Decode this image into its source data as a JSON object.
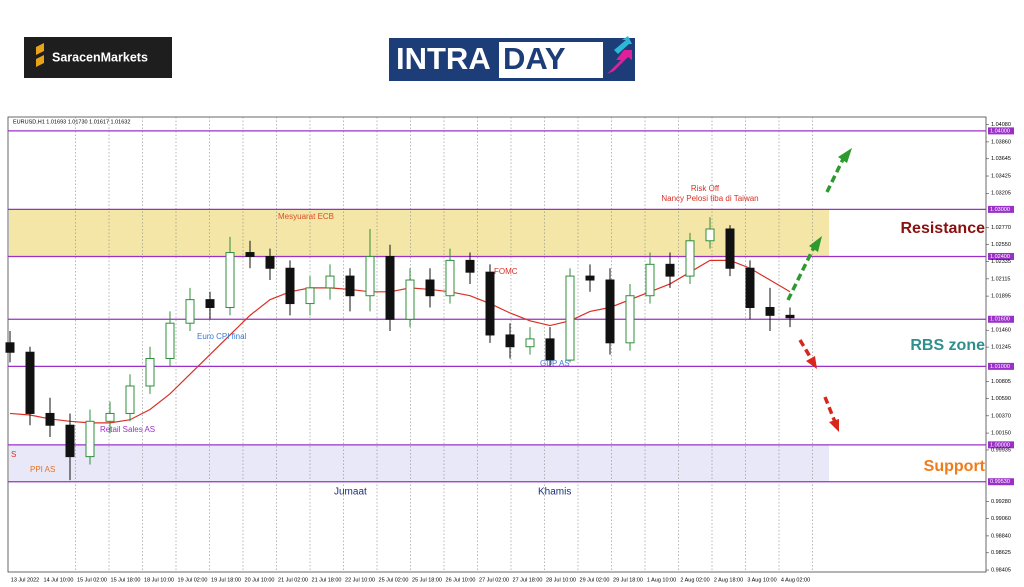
{
  "header": {
    "broker_logo": "SaracenMarkets",
    "brand_part1": "INTRA",
    "brand_part2": "DAY"
  },
  "chart_data": {
    "type": "candlestick",
    "chart_header": "EURUSD,H1  1.01693 1.01730 1.01617 1.01632",
    "candles": {
      "up_color": "#2f8f3a",
      "down_color": "#111111",
      "open": [
        1.013,
        1.0118,
        1.004,
        1.0025,
        0.9985,
        1.003,
        1.004,
        1.0075,
        1.011,
        1.0155,
        1.0185,
        1.0175,
        1.0245,
        1.024,
        1.0225,
        1.018,
        1.02,
        1.0215,
        1.019,
        1.024,
        1.016,
        1.021,
        1.019,
        1.0235,
        1.022,
        1.014,
        1.0125,
        1.0135,
        1.0108,
        1.0215,
        1.021,
        1.013,
        1.019,
        1.023,
        1.0215,
        1.026,
        1.0275,
        1.0225,
        1.0175,
        1.0165
      ],
      "high": [
        1.0145,
        1.0125,
        1.006,
        1.004,
        1.0045,
        1.0055,
        1.009,
        1.0125,
        1.017,
        1.02,
        1.0195,
        1.0265,
        1.026,
        1.025,
        1.0235,
        1.0215,
        1.023,
        1.0225,
        1.0275,
        1.0255,
        1.0225,
        1.0225,
        1.025,
        1.0245,
        1.023,
        1.0155,
        1.015,
        1.015,
        1.0225,
        1.023,
        1.0225,
        1.0205,
        1.0245,
        1.0245,
        1.027,
        1.029,
        1.028,
        1.0235,
        1.02,
        1.0175
      ],
      "low": [
        1.0105,
        1.0025,
        1.001,
        0.9955,
        0.9975,
        1.0015,
        1.003,
        1.0065,
        1.01,
        1.0145,
        1.016,
        1.0165,
        1.0225,
        1.021,
        1.0165,
        1.0165,
        1.0185,
        1.017,
        1.017,
        1.0145,
        1.015,
        1.0175,
        1.018,
        1.0205,
        1.013,
        1.011,
        1.0115,
        1.01,
        1.0105,
        1.0195,
        1.0115,
        1.012,
        1.018,
        1.02,
        1.0205,
        1.025,
        1.0215,
        1.016,
        1.0145,
        1.015
      ],
      "close": [
        1.0118,
        1.004,
        1.0025,
        0.9985,
        1.003,
        1.004,
        1.0075,
        1.011,
        1.0155,
        1.0185,
        1.0175,
        1.0245,
        1.024,
        1.0225,
        1.018,
        1.02,
        1.0215,
        1.019,
        1.024,
        1.016,
        1.021,
        1.019,
        1.0235,
        1.022,
        1.014,
        1.0125,
        1.0135,
        1.0108,
        1.0215,
        1.021,
        1.013,
        1.019,
        1.023,
        1.0215,
        1.026,
        1.0275,
        1.0225,
        1.0175,
        1.0165,
        1.0162
      ]
    },
    "moving_average": {
      "color": "#d93025",
      "values": [
        1.004,
        1.0038,
        1.0033,
        1.003,
        1.0028,
        1.0028,
        1.0032,
        1.0045,
        1.0065,
        1.009,
        1.0115,
        1.014,
        1.0165,
        1.0185,
        1.0195,
        1.02,
        1.02,
        1.0198,
        1.0195,
        1.0195,
        1.02,
        1.0198,
        1.0195,
        1.019,
        1.018,
        1.0168,
        1.0158,
        1.0152,
        1.0158,
        1.017,
        1.0175,
        1.0185,
        1.0195,
        1.0205,
        1.022,
        1.0235,
        1.0235,
        1.0225,
        1.021,
        1.0195
      ]
    },
    "ylim": [
      0.9838,
      1.04177
    ],
    "yticks": [
      {
        "value": 1.0408,
        "label": "1.04080"
      },
      {
        "value": 1.0386,
        "label": "1.03860"
      },
      {
        "value": 1.03645,
        "label": "1.03645"
      },
      {
        "value": 1.03425,
        "label": "1.03425"
      },
      {
        "value": 1.03205,
        "label": "1.03205"
      },
      {
        "value": 1.0277,
        "label": "1.02770"
      },
      {
        "value": 1.0255,
        "label": "1.02550"
      },
      {
        "value": 1.02335,
        "label": "1.02335"
      },
      {
        "value": 1.02115,
        "label": "1.02115"
      },
      {
        "value": 1.01895,
        "label": "1.01895"
      },
      {
        "value": 1.0146,
        "label": "1.01460"
      },
      {
        "value": 1.01245,
        "label": "1.01245"
      },
      {
        "value": 1.00805,
        "label": "1.00805"
      },
      {
        "value": 1.0059,
        "label": "1.00590"
      },
      {
        "value": 1.0037,
        "label": "1.00370"
      },
      {
        "value": 1.0015,
        "label": "1.00150"
      },
      {
        "value": 0.99935,
        "label": "0.99935"
      },
      {
        "value": 0.9928,
        "label": "0.99280"
      },
      {
        "value": 0.9906,
        "label": "0.99060"
      },
      {
        "value": 0.9884,
        "label": "0.98840"
      },
      {
        "value": 0.98625,
        "label": "0.98625"
      },
      {
        "value": 0.98405,
        "label": "0.98405"
      }
    ],
    "levels": [
      {
        "value": 1.04,
        "label": "1.04000"
      },
      {
        "value": 1.03,
        "label": "1.03000"
      },
      {
        "value": 1.024,
        "label": "1.02400"
      },
      {
        "value": 1.016,
        "label": "1.01600"
      },
      {
        "value": 1.01,
        "label": "1.01000"
      },
      {
        "value": 1.0,
        "label": "1.00000"
      },
      {
        "value": 0.9953,
        "label": "0.99530"
      }
    ],
    "level_color": "#9b30c8",
    "zones": [
      {
        "from": 1.024,
        "to": 1.03,
        "color": "#f3e6a6"
      },
      {
        "from": 0.9953,
        "to": 1.0,
        "color": "#e8e8f8"
      }
    ],
    "time_labels": [
      "13 Jul 2022",
      "14 Jul 10:00",
      "15 Jul 02:00",
      "15 Jul 18:00",
      "18 Jul 10:00",
      "19 Jul 02:00",
      "19 Jul 18:00",
      "20 Jul 10:00",
      "21 Jul 02:00",
      "21 Jul 18:00",
      "22 Jul 10:00",
      "25 Jul 02:00",
      "25 Jul 18:00",
      "26 Jul 10:00",
      "27 Jul 02:00",
      "27 Jul 18:00",
      "28 Jul 10:00",
      "29 Jul 02:00",
      "29 Jul 18:00",
      "1 Aug 10:00",
      "2 Aug 02:00",
      "2 Aug 18:00",
      "3 Aug 10:00",
      "4 Aug 02:00"
    ],
    "grid": true,
    "annotations": [
      "Mesyuarat ECB",
      "Risk Off",
      "Nancy Pelosi tiba di Taiwan",
      "FOMC",
      "Euro CPI final",
      "GDP AS",
      "Retail Sales AS",
      "PPI AS",
      "S",
      "Jumaat",
      "Khamis"
    ],
    "zone_labels": [
      "Resistance",
      "RBS zone",
      "Support"
    ]
  }
}
